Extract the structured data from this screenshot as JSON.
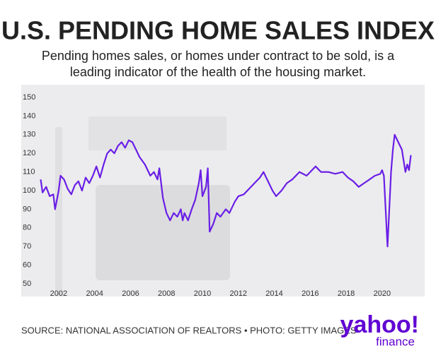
{
  "chart_data": {
    "type": "line",
    "title": "U.S. PENDING HOME SALES INDEX",
    "subtitle_lines": [
      "Pending homes sales, or homes under contract to be sold, is a",
      "leading indicator of the health of the housing market."
    ],
    "source": "SOURCE: NATIONAL ASSOCIATION OF REALTORS • PHOTO: GETTY IMAGES",
    "logo": [
      "yahoo!",
      "finance"
    ],
    "ylim": [
      50,
      150
    ],
    "yticks": [
      50,
      60,
      70,
      80,
      90,
      100,
      110,
      120,
      130,
      140,
      150
    ],
    "xlim": [
      2000.9,
      2021.7
    ],
    "xticks": [
      2002,
      2004,
      2006,
      2008,
      2010,
      2012,
      2014,
      2016,
      2018,
      2020
    ],
    "series": [
      {
        "color": "#6a1ee6",
        "x": [
          2001.0,
          2001.1,
          2001.3,
          2001.5,
          2001.7,
          2001.8,
          2002.0,
          2002.1,
          2002.3,
          2002.5,
          2002.7,
          2002.9,
          2003.1,
          2003.3,
          2003.5,
          2003.7,
          2003.9,
          2004.1,
          2004.3,
          2004.5,
          2004.7,
          2004.9,
          2005.1,
          2005.3,
          2005.5,
          2005.7,
          2005.9,
          2006.1,
          2006.3,
          2006.5,
          2006.8,
          2007.1,
          2007.3,
          2007.5,
          2007.6,
          2007.8,
          2008.0,
          2008.2,
          2008.4,
          2008.6,
          2008.8,
          2008.9,
          2009.0,
          2009.2,
          2009.4,
          2009.6,
          2009.8,
          2009.9,
          2010.0,
          2010.2,
          2010.3,
          2010.4,
          2010.6,
          2010.8,
          2011.0,
          2011.3,
          2011.5,
          2011.8,
          2012.0,
          2012.3,
          2012.6,
          2012.9,
          2013.2,
          2013.4,
          2013.7,
          2013.9,
          2014.1,
          2014.4,
          2014.7,
          2015.0,
          2015.4,
          2015.8,
          2016.0,
          2016.3,
          2016.6,
          2017.0,
          2017.4,
          2017.8,
          2018.1,
          2018.4,
          2018.7,
          2019.0,
          2019.3,
          2019.6,
          2019.9,
          2020.0,
          2020.1,
          2020.3,
          2020.5,
          2020.6,
          2020.7,
          2020.9,
          2021.1,
          2021.3,
          2021.4,
          2021.5,
          2021.6
        ],
        "values": [
          106,
          99,
          102,
          97,
          98,
          90,
          100,
          108,
          106,
          101,
          98,
          103,
          105,
          100,
          107,
          104,
          108,
          113,
          107,
          114,
          120,
          122,
          120,
          124,
          126,
          123,
          127,
          126,
          122,
          118,
          114,
          108,
          110,
          106,
          112,
          96,
          88,
          84,
          88,
          86,
          90,
          84,
          88,
          84,
          90,
          95,
          104,
          111,
          97,
          102,
          112,
          78,
          82,
          88,
          86,
          90,
          88,
          94,
          97,
          98,
          101,
          104,
          107,
          110,
          104,
          100,
          97,
          100,
          104,
          106,
          110,
          108,
          110,
          113,
          110,
          110,
          109,
          110,
          107,
          105,
          102,
          104,
          106,
          108,
          109,
          111,
          108,
          70,
          110,
          122,
          130,
          126,
          122,
          110,
          114,
          111,
          119
        ]
      }
    ]
  }
}
